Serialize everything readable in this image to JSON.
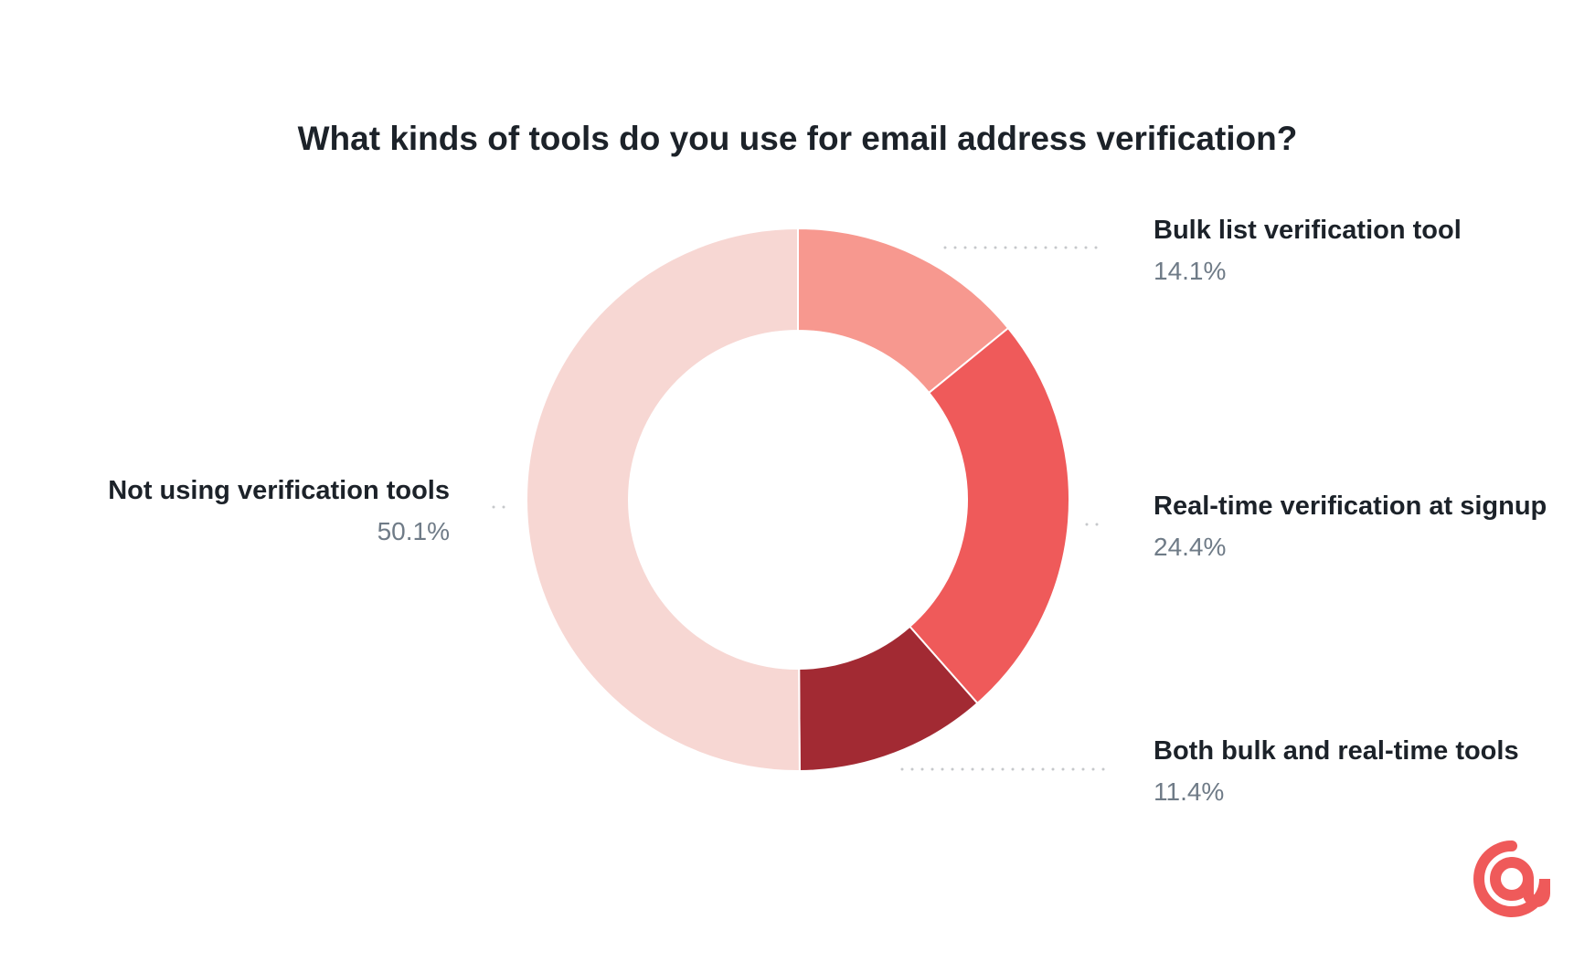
{
  "chart_data": {
    "type": "pie",
    "title": "What kinds of tools do you use for email address verification?",
    "slices": [
      {
        "label": "Bulk list verification tool",
        "value": 14.1,
        "value_label": "14.1%",
        "color": "#f7988f"
      },
      {
        "label": "Real-time verification at signup",
        "value": 24.4,
        "value_label": "24.4%",
        "color": "#ef5a5a"
      },
      {
        "label": "Both bulk and real-time tools",
        "value": 11.4,
        "value_label": "11.4%",
        "color": "#a22a33"
      },
      {
        "label": "Not using verification tools",
        "value": 50.1,
        "value_label": "50.1%",
        "color": "#f7d7d3"
      }
    ],
    "legend": "none",
    "grid": false
  },
  "logo": {
    "icon": "at-sign-icon",
    "color": "#ef5a5a"
  },
  "colors": {
    "title": "#1c2229",
    "value_text": "#6f7b87",
    "leader_dots": "#c6c8cb"
  }
}
